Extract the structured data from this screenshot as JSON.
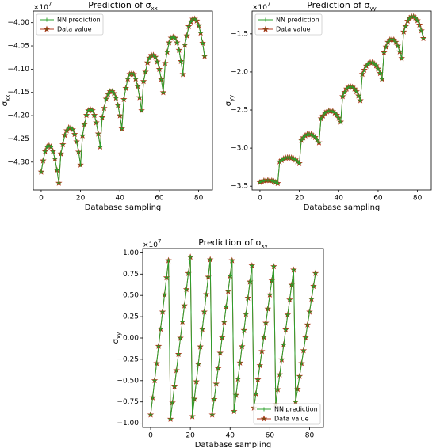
{
  "chart_data": [
    {
      "type": "line",
      "title": "Prediction of σ",
      "title_subscript": "xx",
      "xlabel": "Database sampling",
      "ylabel": "σ",
      "ylabel_subscript": "xx",
      "offset_text": "×10",
      "offset_exponent": "7",
      "legend": "upper left",
      "x": [
        0,
        1,
        2,
        3,
        4,
        5,
        6,
        7,
        8,
        9,
        10,
        11,
        12,
        13,
        14,
        15,
        16,
        17,
        18,
        19,
        20,
        21,
        22,
        23,
        24,
        25,
        26,
        27,
        28,
        29,
        30,
        31,
        32,
        33,
        34,
        35,
        36,
        37,
        38,
        39,
        40,
        41,
        42,
        43,
        44,
        45,
        46,
        47,
        48,
        49,
        50,
        51,
        52,
        53,
        54,
        55,
        56,
        57,
        58,
        59,
        60,
        61,
        62,
        63,
        64,
        65,
        66,
        67,
        68,
        69,
        70,
        71,
        72,
        73,
        74,
        75,
        76,
        77,
        78,
        79,
        80,
        81,
        82,
        83
      ],
      "series": [
        {
          "name": "NN prediction",
          "color": "#2ca02c",
          "marker": "plus",
          "values": [
            -4.321,
            -4.297,
            -4.277,
            -4.267,
            -4.265,
            -4.267,
            -4.277,
            -4.293,
            -4.317,
            -4.345,
            -4.282,
            -4.262,
            -4.242,
            -4.232,
            -4.226,
            -4.226,
            -4.23,
            -4.24,
            -4.256,
            -4.278,
            -4.306,
            -4.243,
            -4.219,
            -4.199,
            -4.189,
            -4.187,
            -4.189,
            -4.199,
            -4.215,
            -4.239,
            -4.267,
            -4.204,
            -4.184,
            -4.164,
            -4.154,
            -4.148,
            -4.148,
            -4.152,
            -4.162,
            -4.178,
            -4.2,
            -4.228,
            -4.165,
            -4.141,
            -4.121,
            -4.111,
            -4.109,
            -4.111,
            -4.121,
            -4.137,
            -4.161,
            -4.189,
            -4.126,
            -4.106,
            -4.086,
            -4.076,
            -4.07,
            -4.07,
            -4.074,
            -4.084,
            -4.1,
            -4.122,
            -4.15,
            -4.087,
            -4.063,
            -4.043,
            -4.033,
            -4.031,
            -4.033,
            -4.043,
            -4.059,
            -4.083,
            -4.111,
            -4.048,
            -4.028,
            -4.008,
            -3.998,
            -3.992,
            -3.992,
            -3.996,
            -4.006,
            -4.022,
            -4.044,
            -4.072
          ]
        },
        {
          "name": "Data value",
          "color": "#b03a1e",
          "marker": "star",
          "values": [
            -4.321,
            -4.297,
            -4.277,
            -4.267,
            -4.265,
            -4.267,
            -4.277,
            -4.293,
            -4.317,
            -4.345,
            -4.282,
            -4.262,
            -4.242,
            -4.232,
            -4.226,
            -4.226,
            -4.23,
            -4.24,
            -4.256,
            -4.278,
            -4.306,
            -4.243,
            -4.219,
            -4.199,
            -4.189,
            -4.187,
            -4.189,
            -4.199,
            -4.215,
            -4.239,
            -4.267,
            -4.204,
            -4.184,
            -4.164,
            -4.154,
            -4.148,
            -4.148,
            -4.152,
            -4.162,
            -4.178,
            -4.2,
            -4.228,
            -4.165,
            -4.141,
            -4.121,
            -4.111,
            -4.109,
            -4.111,
            -4.121,
            -4.137,
            -4.161,
            -4.189,
            -4.126,
            -4.106,
            -4.086,
            -4.076,
            -4.07,
            -4.07,
            -4.074,
            -4.084,
            -4.1,
            -4.122,
            -4.15,
            -4.087,
            -4.063,
            -4.043,
            -4.033,
            -4.031,
            -4.033,
            -4.043,
            -4.059,
            -4.083,
            -4.111,
            -4.048,
            -4.028,
            -4.008,
            -3.998,
            -3.992,
            -3.992,
            -3.996,
            -4.006,
            -4.022,
            -4.044,
            -4.072
          ]
        }
      ],
      "xlim": [
        -4,
        87
      ],
      "xticks": [
        0,
        20,
        40,
        60,
        80
      ],
      "ylim": [
        -4.36,
        -3.975
      ],
      "yticks": [
        {
          "value": -4.3,
          "label": "−4.30"
        },
        {
          "value": -4.25,
          "label": "−4.25"
        },
        {
          "value": -4.2,
          "label": "−4.20"
        },
        {
          "value": -4.15,
          "label": "−4.15"
        },
        {
          "value": -4.1,
          "label": "−4.10"
        },
        {
          "value": -4.05,
          "label": "−4.05"
        },
        {
          "value": -4.0,
          "label": "−4.00"
        }
      ]
    },
    {
      "type": "line",
      "title": "Prediction of σ",
      "title_subscript": "yy",
      "xlabel": "Database sampling",
      "ylabel": "σ",
      "ylabel_subscript": "yy",
      "offset_text": "×10",
      "offset_exponent": "7",
      "legend": "upper left",
      "x": [
        0,
        1,
        2,
        3,
        4,
        5,
        6,
        7,
        8,
        9,
        10,
        11,
        12,
        13,
        14,
        15,
        16,
        17,
        18,
        19,
        20,
        21,
        22,
        23,
        24,
        25,
        26,
        27,
        28,
        29,
        30,
        31,
        32,
        33,
        34,
        35,
        36,
        37,
        38,
        39,
        40,
        41,
        42,
        43,
        44,
        45,
        46,
        47,
        48,
        49,
        50,
        51,
        52,
        53,
        54,
        55,
        56,
        57,
        58,
        59,
        60,
        61,
        62,
        63,
        64,
        65,
        66,
        67,
        68,
        69,
        70,
        71,
        72,
        73,
        74,
        75,
        76,
        77,
        78,
        79,
        80,
        81,
        82,
        83
      ],
      "series": [
        {
          "name": "NN prediction",
          "color": "#2ca02c",
          "marker": "plus",
          "values": [
            -3.45,
            -3.438,
            -3.428,
            -3.423,
            -3.422,
            -3.423,
            -3.428,
            -3.436,
            -3.448,
            -3.462,
            -3.178,
            -3.159,
            -3.14,
            -3.13,
            -3.125,
            -3.125,
            -3.129,
            -3.139,
            -3.154,
            -3.174,
            -3.2,
            -2.895,
            -2.862,
            -2.835,
            -2.821,
            -2.818,
            -2.821,
            -2.835,
            -2.857,
            -2.89,
            -2.928,
            -2.613,
            -2.576,
            -2.54,
            -2.521,
            -2.511,
            -2.511,
            -2.518,
            -2.537,
            -2.566,
            -2.605,
            -2.656,
            -2.32,
            -2.266,
            -2.221,
            -2.199,
            -2.194,
            -2.199,
            -2.221,
            -2.257,
            -2.311,
            -2.374,
            -2.028,
            -1.974,
            -1.92,
            -1.892,
            -1.877,
            -1.877,
            -1.888,
            -1.916,
            -1.959,
            -2.017,
            -2.092,
            -1.745,
            -1.67,
            -1.608,
            -1.578,
            -1.57,
            -1.578,
            -1.608,
            -1.658,
            -1.733,
            -1.82,
            -1.473,
            -1.401,
            -1.33,
            -1.293,
            -1.273,
            -1.273,
            -1.287,
            -1.324,
            -1.381,
            -1.458,
            -1.558
          ]
        },
        {
          "name": "Data value",
          "color": "#b03a1e",
          "marker": "star",
          "values": [
            -3.45,
            -3.438,
            -3.428,
            -3.423,
            -3.422,
            -3.423,
            -3.428,
            -3.436,
            -3.448,
            -3.462,
            -3.178,
            -3.159,
            -3.14,
            -3.13,
            -3.125,
            -3.125,
            -3.129,
            -3.139,
            -3.154,
            -3.174,
            -3.2,
            -2.895,
            -2.862,
            -2.835,
            -2.821,
            -2.818,
            -2.821,
            -2.835,
            -2.857,
            -2.89,
            -2.928,
            -2.613,
            -2.576,
            -2.54,
            -2.521,
            -2.511,
            -2.511,
            -2.518,
            -2.537,
            -2.566,
            -2.605,
            -2.656,
            -2.32,
            -2.266,
            -2.221,
            -2.199,
            -2.194,
            -2.199,
            -2.221,
            -2.257,
            -2.311,
            -2.374,
            -2.028,
            -1.974,
            -1.92,
            -1.892,
            -1.877,
            -1.877,
            -1.888,
            -1.916,
            -1.959,
            -2.017,
            -2.092,
            -1.745,
            -1.67,
            -1.608,
            -1.578,
            -1.57,
            -1.578,
            -1.608,
            -1.658,
            -1.733,
            -1.82,
            -1.473,
            -1.401,
            -1.33,
            -1.293,
            -1.273,
            -1.273,
            -1.287,
            -1.324,
            -1.381,
            -1.458,
            -1.558
          ]
        }
      ],
      "xlim": [
        -4,
        87
      ],
      "xticks": [
        0,
        20,
        40,
        60,
        80
      ],
      "ylim": [
        -3.55,
        -1.2
      ],
      "yticks": [
        {
          "value": -3.5,
          "label": "−3.5"
        },
        {
          "value": -3.0,
          "label": "−3.0"
        },
        {
          "value": -2.5,
          "label": "−2.5"
        },
        {
          "value": -2.0,
          "label": "−2.0"
        },
        {
          "value": -1.5,
          "label": "−1.5"
        }
      ]
    },
    {
      "type": "line",
      "title": "Prediction of σ",
      "title_subscript": "xy",
      "xlabel": "Database sampling",
      "ylabel": "σ",
      "ylabel_subscript": "xy",
      "offset_text": "×10",
      "offset_exponent": "7",
      "legend": "lower right",
      "x": [
        0,
        1,
        2,
        3,
        4,
        5,
        6,
        7,
        8,
        9,
        10,
        11,
        12,
        13,
        14,
        15,
        16,
        17,
        18,
        19,
        20,
        21,
        22,
        23,
        24,
        25,
        26,
        27,
        28,
        29,
        30,
        31,
        32,
        33,
        34,
        35,
        36,
        37,
        38,
        39,
        40,
        41,
        42,
        43,
        44,
        45,
        46,
        47,
        48,
        49,
        50,
        51,
        52,
        53,
        54,
        55,
        56,
        57,
        58,
        59,
        60,
        61,
        62,
        63,
        64,
        65,
        66,
        67,
        68,
        69,
        70,
        71,
        72,
        73,
        74,
        75,
        76,
        77,
        78,
        79,
        80,
        81,
        82,
        83
      ],
      "series": [
        {
          "name": "NN prediction",
          "color": "#2ca02c",
          "marker": "plus",
          "values": [
            -0.9,
            -0.699,
            -0.498,
            -0.297,
            -0.096,
            0.106,
            0.307,
            0.508,
            0.709,
            0.91,
            -0.95,
            -0.76,
            -0.57,
            -0.38,
            -0.19,
            0,
            0.19,
            0.38,
            0.57,
            0.76,
            0.95,
            -0.92,
            -0.716,
            -0.511,
            -0.307,
            -0.102,
            0.102,
            0.307,
            0.511,
            0.716,
            0.92,
            -0.9,
            -0.719,
            -0.538,
            -0.357,
            -0.176,
            0.005,
            0.186,
            0.367,
            0.548,
            0.729,
            0.91,
            -0.86,
            -0.67,
            -0.48,
            -0.29,
            -0.1,
            0.09,
            0.28,
            0.47,
            0.66,
            0.85,
            -0.82,
            -0.654,
            -0.488,
            -0.322,
            -0.156,
            0.01,
            0.176,
            0.342,
            0.508,
            0.674,
            0.84,
            -0.78,
            -0.604,
            -0.429,
            -0.253,
            -0.078,
            0.098,
            0.273,
            0.449,
            0.624,
            0.8,
            -0.75,
            -0.599,
            -0.448,
            -0.297,
            -0.146,
            0.005,
            0.156,
            0.307,
            0.458,
            0.609,
            0.76
          ]
        },
        {
          "name": "Data value",
          "color": "#b03a1e",
          "marker": "star",
          "values": [
            -0.9,
            -0.699,
            -0.498,
            -0.297,
            -0.096,
            0.106,
            0.307,
            0.508,
            0.709,
            0.91,
            -0.95,
            -0.76,
            -0.57,
            -0.38,
            -0.19,
            0,
            0.19,
            0.38,
            0.57,
            0.76,
            0.95,
            -0.92,
            -0.716,
            -0.511,
            -0.307,
            -0.102,
            0.102,
            0.307,
            0.511,
            0.716,
            0.92,
            -0.9,
            -0.719,
            -0.538,
            -0.357,
            -0.176,
            0.005,
            0.186,
            0.367,
            0.548,
            0.729,
            0.91,
            -0.86,
            -0.67,
            -0.48,
            -0.29,
            -0.1,
            0.09,
            0.28,
            0.47,
            0.66,
            0.85,
            -0.82,
            -0.654,
            -0.488,
            -0.322,
            -0.156,
            0.01,
            0.176,
            0.342,
            0.508,
            0.674,
            0.84,
            -0.78,
            -0.604,
            -0.429,
            -0.253,
            -0.078,
            0.098,
            0.273,
            0.449,
            0.624,
            0.8,
            -0.75,
            -0.599,
            -0.448,
            -0.297,
            -0.146,
            0.005,
            0.156,
            0.307,
            0.458,
            0.609,
            0.76
          ]
        }
      ],
      "xlim": [
        -4,
        87
      ],
      "xticks": [
        0,
        20,
        40,
        60,
        80
      ],
      "ylim": [
        -1.05,
        1.05
      ],
      "yticks": [
        {
          "value": -1.0,
          "label": "−1.00"
        },
        {
          "value": -0.75,
          "label": "−0.75"
        },
        {
          "value": -0.5,
          "label": "−0.50"
        },
        {
          "value": -0.25,
          "label": "−0.25"
        },
        {
          "value": 0,
          "label": "0.00"
        },
        0.25,
        {
          "value": 0.5,
          "label": "0.50"
        },
        0.75,
        {
          "value": 1.0,
          "label": "1.00"
        }
      ]
    }
  ]
}
